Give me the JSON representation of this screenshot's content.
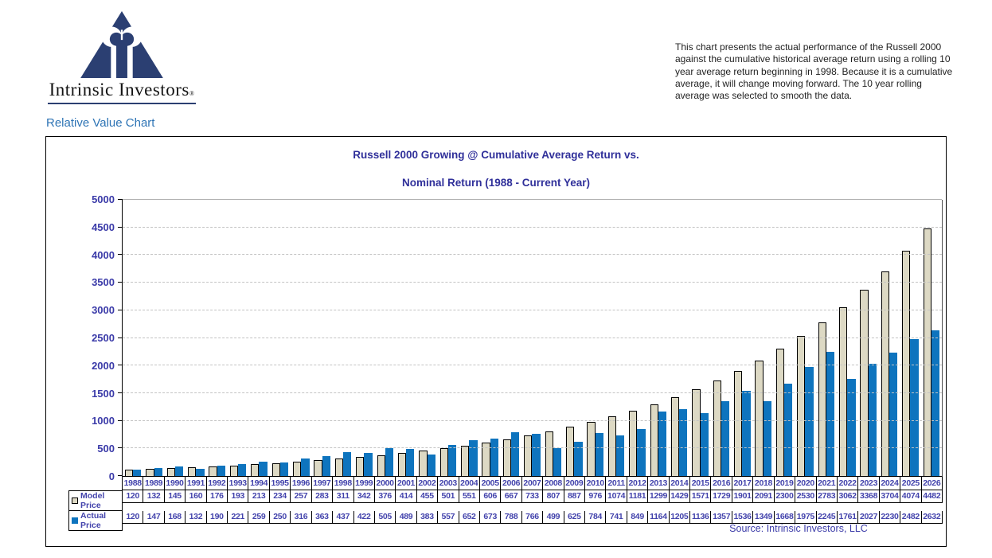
{
  "logo": {
    "brand": "Intrinsic Investors",
    "reg_mark": "®"
  },
  "page_heading": "Relative Value Chart",
  "description": "This chart presents the actual performance of the Russell 2000 against the cumulative historical average return using a rolling 10 year average return beginning in 1998. Because it is a cumulative average, it will change moving forward. The 10 year rolling average was selected to smooth the data.",
  "source_note": "Source: Intrinsic Investors, LLC",
  "colors": {
    "model_fill": "#DDD9C4",
    "actual_fill": "#0E74BE",
    "chart_text": "#3A3AA8",
    "title_text": "#30309A",
    "heading_blue": "#2E74B5",
    "logo_navy": "#2B3F72"
  },
  "chart_data": {
    "type": "bar",
    "title": "Russell 2000 Growing @  Cumulative Average Return vs.",
    "subtitle": "Nominal Return  (1988 - Current Year)",
    "categories": [
      1988,
      1989,
      1990,
      1991,
      1992,
      1993,
      1994,
      1995,
      1996,
      1997,
      1998,
      1999,
      2000,
      2001,
      2002,
      2003,
      2004,
      2005,
      2006,
      2007,
      2008,
      2009,
      2010,
      2011,
      2012,
      2013,
      2014,
      2015,
      2016,
      2017,
      2018,
      2019,
      2020,
      2021,
      2022,
      2023,
      2024,
      2025,
      2026
    ],
    "series": [
      {
        "name": "Model Price",
        "color": "#DDD9C4",
        "outlined": true,
        "values": [
          120,
          132,
          145,
          160,
          176,
          193,
          213,
          234,
          257,
          283,
          311,
          342,
          376,
          414,
          455,
          501,
          551,
          606,
          667,
          733,
          807,
          887,
          976,
          1074,
          1181,
          1299,
          1429,
          1571,
          1729,
          1901,
          2091,
          2300,
          2530,
          2783,
          3062,
          3368,
          3704,
          4074,
          4482
        ]
      },
      {
        "name": "Actual Price",
        "color": "#0E74BE",
        "outlined": false,
        "values": [
          120,
          147,
          168,
          132,
          190,
          221,
          259,
          250,
          316,
          363,
          437,
          422,
          505,
          489,
          383,
          557,
          652,
          673,
          788,
          766,
          499,
          625,
          784,
          741,
          849,
          1164,
          1205,
          1136,
          1357,
          1536,
          1349,
          1668,
          1975,
          2245,
          1761,
          2027,
          2230,
          2482,
          2632
        ]
      }
    ],
    "ylim": [
      0,
      5000
    ],
    "ytick_step": 500,
    "grid": true,
    "legend_position": "data-table-left",
    "xlabel": "",
    "ylabel": ""
  }
}
